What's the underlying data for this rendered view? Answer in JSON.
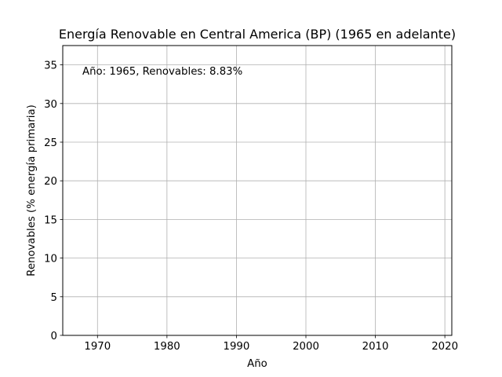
{
  "chart_data": {
    "type": "line",
    "title": "Energía Renovable en Central America (BP) (1965 en adelante)",
    "xlabel": "Año",
    "ylabel": "Renovables (% energía primaria)",
    "xlim": [
      1965,
      2021
    ],
    "ylim": [
      0,
      37.5
    ],
    "x_ticks": [
      1970,
      1980,
      1990,
      2000,
      2010,
      2020
    ],
    "y_ticks": [
      0,
      5,
      10,
      15,
      20,
      25,
      30,
      35
    ],
    "x_tick_labels": [
      "1970",
      "1980",
      "1990",
      "2000",
      "2010",
      "2020"
    ],
    "y_tick_labels": [
      "0",
      "5",
      "10",
      "15",
      "20",
      "25",
      "30",
      "35"
    ],
    "grid": true,
    "annotation": "Año: 1965, Renovables: 8.83%",
    "series": [
      {
        "x": [
          1965
        ],
        "y": [
          8.83
        ],
        "color": "#1f77b4"
      }
    ]
  }
}
